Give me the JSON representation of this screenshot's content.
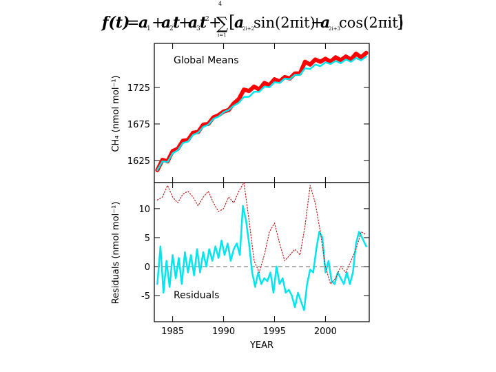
{
  "formula": {
    "lhs": "f(t)",
    "eq": "=",
    "t1": "a",
    "t1sub": "1",
    "plus": "+",
    "t2": "a",
    "t2sub": "2",
    "t2var": "t",
    "t3": "a",
    "t3sub": "3",
    "t3var": "t",
    "t3pow": "2",
    "sum_sym": "∑",
    "sum_top": "4",
    "sum_bot": "i=1",
    "bracket_open": "[",
    "a_sin": "a",
    "a_sin_sub": "2i+2",
    "sin": "sin(2πit)",
    "a_cos": "a",
    "a_cos_sub": "2i+3",
    "cos": "cos(2πit)",
    "bracket_close": "]"
  },
  "colors": {
    "fit": "#00e5ee",
    "data": "#ff0000",
    "trend": "#555555",
    "residual_data": "#c02020",
    "zero": "#666666"
  },
  "chart_data": [
    {
      "type": "line",
      "panel": "top",
      "title": "Global Means",
      "ylabel": "CH₄ (nmol mol⁻¹)",
      "xlim": [
        1983.2,
        2004.3
      ],
      "ylim": [
        1595,
        1785
      ],
      "yticks": [
        1625,
        1675,
        1725
      ],
      "grid": false,
      "series": [
        {
          "role": "data",
          "color": "red",
          "x": [
            1983.5,
            1984,
            1984.5,
            1985,
            1985.5,
            1986,
            1986.5,
            1987,
            1987.5,
            1988,
            1988.5,
            1989,
            1989.5,
            1990,
            1990.5,
            1991,
            1991.5,
            1992,
            1992.5,
            1993,
            1993.5,
            1994,
            1994.5,
            1995,
            1995.5,
            1996,
            1996.5,
            1997,
            1997.5,
            1998,
            1998.5,
            1999,
            1999.5,
            2000,
            2000.5,
            2001,
            2001.5,
            2002,
            2002.5,
            2003,
            2003.5,
            2004
          ],
          "y": [
            1612,
            1626,
            1624,
            1638,
            1641,
            1652,
            1653,
            1663,
            1664,
            1674,
            1675,
            1684,
            1687,
            1692,
            1694,
            1703,
            1709,
            1722,
            1720,
            1726,
            1722,
            1731,
            1728,
            1736,
            1733,
            1739,
            1737,
            1744,
            1744,
            1760,
            1756,
            1763,
            1760,
            1764,
            1760,
            1766,
            1762,
            1767,
            1763,
            1771,
            1766,
            1772
          ]
        },
        {
          "role": "fit",
          "color": "cyan",
          "x": [
            1983.5,
            1984,
            1984.5,
            1985,
            1985.5,
            1986,
            1986.5,
            1987,
            1987.5,
            1988,
            1988.5,
            1989,
            1989.5,
            1990,
            1990.5,
            1991,
            1991.5,
            1992,
            1992.5,
            1993,
            1993.5,
            1994,
            1994.5,
            1995,
            1995.5,
            1996,
            1996.5,
            1997,
            1997.5,
            1998,
            1998.5,
            1999,
            1999.5,
            2000,
            2000.5,
            2001,
            2001.5,
            2002,
            2002.5,
            2003,
            2003.5,
            2004
          ],
          "y": [
            1612,
            1624,
            1623,
            1635,
            1639,
            1649,
            1651,
            1660,
            1663,
            1671,
            1674,
            1682,
            1685,
            1691,
            1694,
            1700,
            1704,
            1712,
            1712,
            1719,
            1719,
            1726,
            1725,
            1732,
            1731,
            1737,
            1736,
            1742,
            1742,
            1751,
            1750,
            1756,
            1754,
            1759,
            1757,
            1761,
            1758,
            1763,
            1760,
            1765,
            1762,
            1767
          ]
        }
      ]
    },
    {
      "type": "line",
      "panel": "bottom",
      "title": "Residuals",
      "xlabel": "YEAR",
      "ylabel": "Residuals (nmol mol⁻¹)",
      "xlim": [
        1983.2,
        2004.3
      ],
      "ylim": [
        -9.5,
        14.5
      ],
      "xticks": [
        1985,
        1990,
        1995,
        2000
      ],
      "yticks": [
        -5,
        0,
        5,
        10
      ],
      "grid": false,
      "series": [
        {
          "role": "residuals",
          "color": "cyan",
          "x": [
            1983.5,
            1983.8,
            1984.1,
            1984.4,
            1984.7,
            1985,
            1985.3,
            1985.6,
            1985.9,
            1986.2,
            1986.5,
            1986.8,
            1987.1,
            1987.4,
            1987.7,
            1988,
            1988.3,
            1988.6,
            1988.9,
            1989.2,
            1989.5,
            1989.8,
            1990.1,
            1990.4,
            1990.7,
            1991,
            1991.3,
            1991.6,
            1991.9,
            1992.2,
            1992.5,
            1992.8,
            1993.1,
            1993.4,
            1993.7,
            1994,
            1994.3,
            1994.6,
            1994.9,
            1995.2,
            1995.5,
            1995.8,
            1996.1,
            1996.4,
            1996.7,
            1997,
            1997.3,
            1997.6,
            1997.9,
            1998.2,
            1998.5,
            1998.8,
            1999.1,
            1999.4,
            1999.7,
            2000,
            2000.3,
            2000.6,
            2000.9,
            2001.2,
            2001.5,
            2001.8,
            2002.1,
            2002.4,
            2002.7,
            2003,
            2003.3,
            2003.6,
            2004
          ],
          "y": [
            -3,
            3.5,
            -4.5,
            1,
            -3.5,
            2,
            -2,
            1.5,
            -3,
            2.5,
            -1,
            2,
            -1.5,
            3,
            -1,
            2.5,
            0,
            3,
            1,
            3.5,
            1.5,
            4.5,
            2,
            4,
            1,
            3,
            4,
            2,
            10.5,
            8,
            4,
            -1,
            -3.5,
            -1,
            -3,
            -2,
            -2.5,
            -1,
            -4.5,
            0,
            -3,
            -2,
            -4.5,
            -4,
            -5,
            -7,
            -4.5,
            -6,
            -7.5,
            -3,
            -0.5,
            -1,
            3,
            6,
            5,
            -1,
            1,
            -2.5,
            -3,
            -1,
            -2,
            -3,
            -1,
            -3,
            -1,
            4,
            6,
            5,
            3.5
          ]
        },
        {
          "role": "residual_data",
          "color": "red",
          "style": "dotted",
          "x": [
            1983.5,
            1984,
            1984.5,
            1985,
            1985.5,
            1986,
            1986.5,
            1987,
            1987.5,
            1988,
            1988.5,
            1989,
            1989.5,
            1990,
            1990.5,
            1991,
            1991.5,
            1992,
            1992.5,
            1993,
            1993.5,
            1994,
            1994.5,
            1995,
            1995.5,
            1996,
            1996.5,
            1997,
            1997.5,
            1998,
            1998.5,
            1999,
            1999.5,
            2000,
            2000.5,
            2001,
            2001.5,
            2002,
            2002.5,
            2003,
            2003.5,
            2004
          ],
          "y": [
            11.5,
            12,
            14,
            12,
            11,
            12.5,
            13,
            12,
            10.5,
            12,
            13,
            11,
            9.5,
            10,
            12,
            11,
            13,
            14.5,
            8,
            1,
            -1,
            2,
            6,
            7.5,
            4,
            1,
            2,
            3,
            2,
            7,
            14,
            11,
            6,
            0,
            -3,
            -2,
            0,
            -1,
            1,
            3,
            6,
            5.5
          ]
        }
      ]
    }
  ]
}
